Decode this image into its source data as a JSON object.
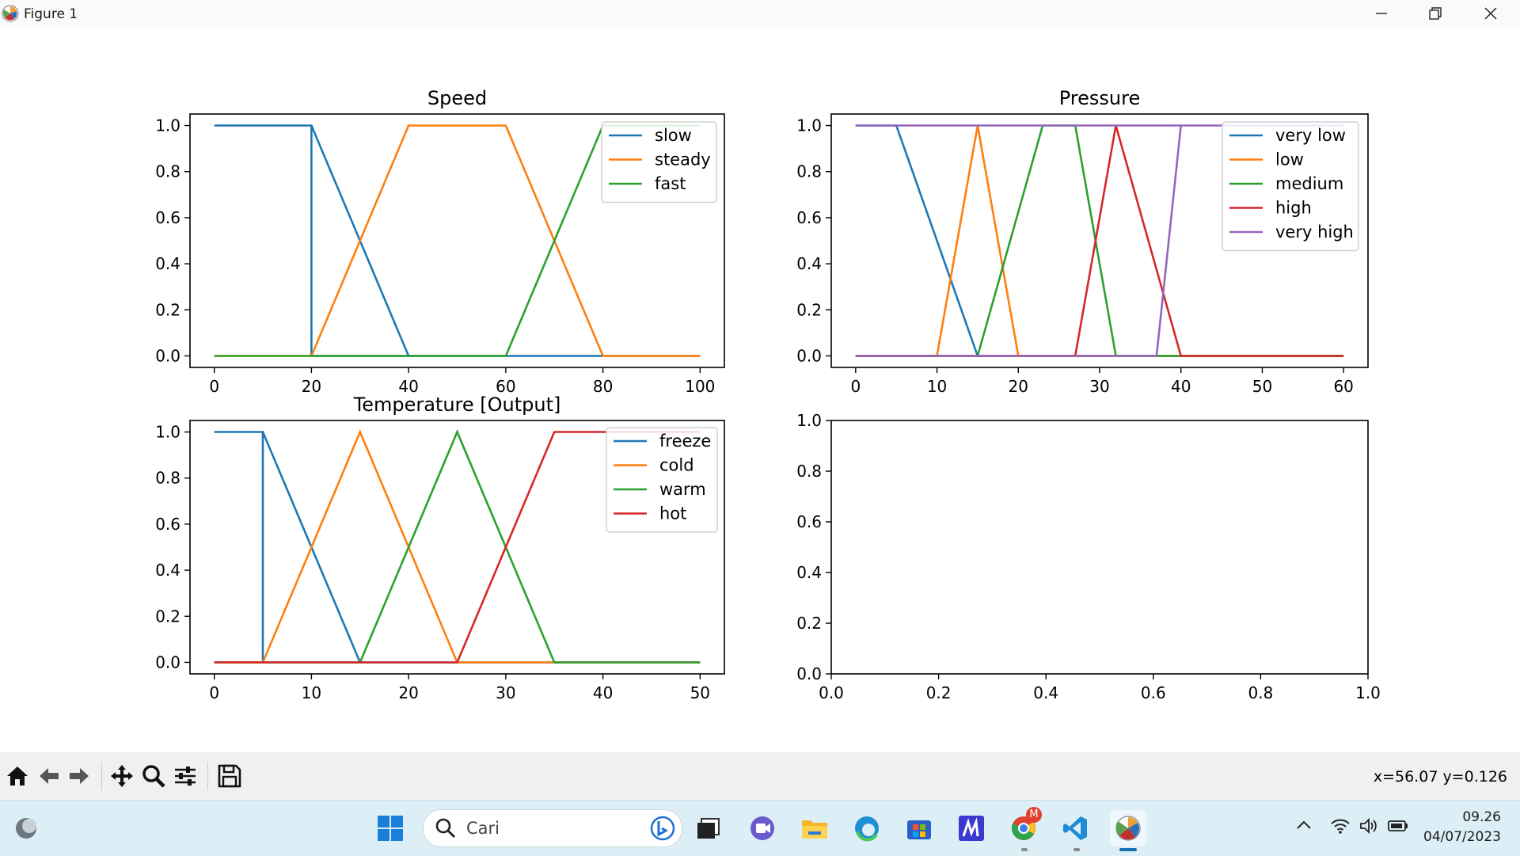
{
  "window": {
    "title": "Figure 1",
    "controls": [
      "minimize",
      "restore",
      "close"
    ]
  },
  "toolbar": {
    "buttons": [
      {
        "name": "home",
        "icon": "home-icon"
      },
      {
        "name": "back",
        "icon": "arrow-left-icon"
      },
      {
        "name": "forward",
        "icon": "arrow-right-icon"
      },
      {
        "name": "pan",
        "icon": "move-icon"
      },
      {
        "name": "zoom",
        "icon": "magnifier-icon"
      },
      {
        "name": "configure-subplots",
        "icon": "sliders-icon"
      },
      {
        "name": "save",
        "icon": "floppy-icon"
      }
    ],
    "coordinates": "x=56.07 y=0.126"
  },
  "chart_data": [
    {
      "type": "line",
      "title": "Speed",
      "xlim": [
        -5,
        105
      ],
      "ylim": [
        -0.05,
        1.05
      ],
      "xticks": [
        0,
        20,
        40,
        60,
        80,
        100
      ],
      "yticks": [
        0.0,
        0.2,
        0.4,
        0.6,
        0.8,
        1.0
      ],
      "xtick_labels": [
        "0",
        "20",
        "40",
        "60",
        "80",
        "100"
      ],
      "ytick_labels": [
        "0.0",
        "0.2",
        "0.4",
        "0.6",
        "0.8",
        "1.0"
      ],
      "legend": "top-right",
      "series": [
        {
          "name": "slow",
          "color": "#1f77b4",
          "x": [
            0,
            20,
            20,
            40,
            100
          ],
          "y": [
            1,
            1,
            0,
            0,
            0
          ]
        },
        {
          "name": "slow",
          "color": "#1f77b4",
          "x": [
            20,
            40
          ],
          "y": [
            1,
            0
          ],
          "legend": false
        },
        {
          "name": "steady",
          "color": "#ff7f0e",
          "x": [
            0,
            20,
            40,
            60,
            80,
            100
          ],
          "y": [
            0,
            0,
            1,
            1,
            0,
            0
          ]
        },
        {
          "name": "fast",
          "color": "#2ca02c",
          "x": [
            0,
            60,
            80,
            100
          ],
          "y": [
            0,
            0,
            1,
            1
          ]
        }
      ]
    },
    {
      "type": "line",
      "title": "Pressure",
      "xlim": [
        -3,
        63
      ],
      "ylim": [
        -0.05,
        1.05
      ],
      "xticks": [
        0,
        10,
        20,
        30,
        40,
        50,
        60
      ],
      "yticks": [
        0.0,
        0.2,
        0.4,
        0.6,
        0.8,
        1.0
      ],
      "xtick_labels": [
        "0",
        "10",
        "20",
        "30",
        "40",
        "50",
        "60"
      ],
      "ytick_labels": [
        "0.0",
        "0.2",
        "0.4",
        "0.6",
        "0.8",
        "1.0"
      ],
      "legend": "top-right",
      "series": [
        {
          "name": "very low",
          "color": "#1f77b4",
          "x": [
            0,
            5,
            15,
            60
          ],
          "y": [
            1,
            1,
            0,
            0
          ]
        },
        {
          "name": "low",
          "color": "#ff7f0e",
          "x": [
            0,
            10,
            15,
            20,
            60
          ],
          "y": [
            0,
            0,
            1,
            0,
            0
          ]
        },
        {
          "name": "medium",
          "color": "#2ca02c",
          "x": [
            0,
            15,
            23,
            27,
            32,
            60
          ],
          "y": [
            0,
            0,
            1,
            1,
            0,
            0
          ]
        },
        {
          "name": "high",
          "color": "#d62728",
          "x": [
            0,
            27,
            32,
            40,
            60
          ],
          "y": [
            0,
            0,
            1,
            0,
            0
          ]
        },
        {
          "name": "very high",
          "color": "#9467bd",
          "x": [
            0,
            37,
            40,
            40,
            60
          ],
          "y": [
            0,
            0,
            1,
            1,
            1
          ],
          "start_from": 1
        },
        {
          "name": "very high",
          "color": "#9467bd",
          "x": [
            0,
            40
          ],
          "y": [
            1,
            1
          ],
          "legend": false
        }
      ]
    },
    {
      "type": "line",
      "title": "Temperature [Output]",
      "xlim": [
        -2.5,
        52.5
      ],
      "ylim": [
        -0.05,
        1.05
      ],
      "xticks": [
        0,
        10,
        20,
        30,
        40,
        50
      ],
      "yticks": [
        0.0,
        0.2,
        0.4,
        0.6,
        0.8,
        1.0
      ],
      "xtick_labels": [
        "0",
        "10",
        "20",
        "30",
        "40",
        "50"
      ],
      "ytick_labels": [
        "0.0",
        "0.2",
        "0.4",
        "0.6",
        "0.8",
        "1.0"
      ],
      "legend": "top-right",
      "series": [
        {
          "name": "freeze",
          "color": "#1f77b4",
          "x": [
            0,
            5,
            5,
            15,
            50
          ],
          "y": [
            1,
            1,
            0,
            0,
            0
          ]
        },
        {
          "name": "freeze",
          "color": "#1f77b4",
          "x": [
            5,
            15
          ],
          "y": [
            1,
            0
          ],
          "legend": false
        },
        {
          "name": "cold",
          "color": "#ff7f0e",
          "x": [
            0,
            5,
            15,
            25,
            50
          ],
          "y": [
            0,
            0,
            1,
            0,
            0
          ]
        },
        {
          "name": "warm",
          "color": "#2ca02c",
          "x": [
            0,
            15,
            25,
            35,
            50
          ],
          "y": [
            0,
            0,
            1,
            0,
            0
          ]
        },
        {
          "name": "hot",
          "color": "#d62728",
          "x": [
            0,
            25,
            35,
            50
          ],
          "y": [
            0,
            0,
            1,
            1
          ]
        }
      ]
    },
    {
      "type": "line",
      "title": "",
      "xlim": [
        0,
        1
      ],
      "ylim": [
        0,
        1
      ],
      "xticks": [
        0.0,
        0.2,
        0.4,
        0.6,
        0.8,
        1.0
      ],
      "yticks": [
        0.0,
        0.2,
        0.4,
        0.6,
        0.8,
        1.0
      ],
      "xtick_labels": [
        "0.0",
        "0.2",
        "0.4",
        "0.6",
        "0.8",
        "1.0"
      ],
      "ytick_labels": [
        "0.0",
        "0.2",
        "0.4",
        "0.6",
        "0.8",
        "1.0"
      ],
      "legend": "none",
      "series": []
    }
  ],
  "taskbar": {
    "search_placeholder": "Cari",
    "apps": [
      "start-icon",
      "task-view-icon",
      "meet-icon",
      "file-explorer-icon",
      "edge-icon",
      "store-icon",
      "mathcha-icon",
      "chrome-icon",
      "vscode-icon",
      "matplotlib-icon"
    ],
    "chrome_badge": "M",
    "time": "09.26",
    "date": "04/07/2023"
  }
}
